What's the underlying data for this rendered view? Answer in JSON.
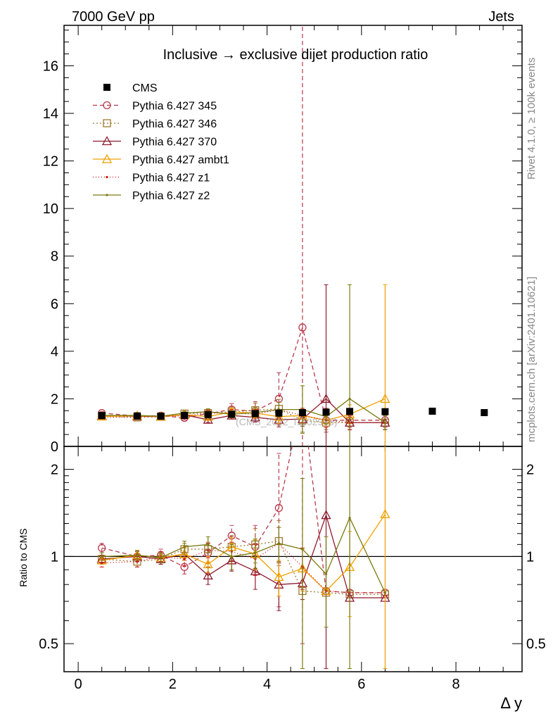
{
  "header": {
    "energy_label": "7000 GeV pp",
    "process_label": "Jets",
    "side_top": "Rivet 4.1.0, ≥ 100k events",
    "side_bottom": "mcplots.cern.ch [arXiv:2401.10621]",
    "watermark": "(CMS_2012_I1102908)"
  },
  "chart_data": {
    "type": "line",
    "title": "Inclusive → exclusive dijet production ratio",
    "xlabel": "Δ y",
    "ylabel": "",
    "ratio_ylabel": "Ratio to CMS",
    "xlim": [
      -0.3,
      9.4
    ],
    "ylim": [
      0,
      17.7
    ],
    "ratio_ylim": [
      0.4,
      2.4
    ],
    "x_ticks": [
      "0",
      "2",
      "4",
      "6",
      "8"
    ],
    "y_ticks": [
      "0",
      "2",
      "4",
      "6",
      "8",
      "10",
      "12",
      "14",
      "16"
    ],
    "ratio_ticks": [
      "0.5",
      "1",
      "2"
    ],
    "legend_position": "top-left",
    "reference": {
      "name": "CMS",
      "color": "#000000",
      "x": [
        0.5,
        1.25,
        1.75,
        2.25,
        2.75,
        3.25,
        3.75,
        4.25,
        4.75,
        5.25,
        5.75,
        6.5,
        7.5,
        8.6
      ],
      "y": [
        1.3,
        1.28,
        1.27,
        1.3,
        1.33,
        1.35,
        1.38,
        1.4,
        1.42,
        1.44,
        1.47,
        1.46,
        1.48,
        1.42
      ]
    },
    "series": [
      {
        "name": "Pythia 6.427 345",
        "color": "#b8394d",
        "dash": "6,4",
        "marker": "circle",
        "x": [
          0.5,
          1.25,
          1.75,
          2.25,
          2.75,
          3.25,
          3.75,
          4.25,
          4.75,
          5.25,
          5.75,
          6.5
        ],
        "y": [
          1.4,
          1.28,
          1.29,
          1.2,
          1.38,
          1.55,
          1.48,
          2.0,
          5.0,
          1.1,
          1.1,
          1.1
        ],
        "err": [
          0.06,
          0.06,
          0.06,
          0.08,
          0.12,
          0.25,
          0.4,
          1.1,
          15.0,
          0.5,
          0.3,
          0.3
        ],
        "ratio": [
          1.07,
          1.0,
          1.01,
          0.92,
          1.03,
          1.18,
          1.08,
          1.47,
          3.5,
          0.76,
          0.75,
          0.75
        ],
        "ratio_err": [
          0.04,
          0.04,
          0.05,
          0.05,
          0.08,
          0.1,
          0.2,
          0.8,
          3.0,
          0.0,
          0.0,
          0.0
        ]
      },
      {
        "name": "Pythia 6.427 346",
        "color": "#a07a30",
        "dash": "2,3",
        "marker": "square",
        "x": [
          0.5,
          1.25,
          1.75,
          2.25,
          2.75,
          3.25,
          3.75,
          4.25,
          4.75,
          5.25,
          5.75,
          6.5
        ],
        "y": [
          1.27,
          1.22,
          1.25,
          1.38,
          1.4,
          1.45,
          1.52,
          1.58,
          1.1,
          1.0,
          1.0,
          1.0
        ],
        "err": [
          0.05,
          0.05,
          0.06,
          0.08,
          0.12,
          0.2,
          0.3,
          0.4,
          0.5,
          0.3,
          0.3,
          0.3
        ],
        "ratio": [
          0.98,
          0.96,
          0.98,
          1.06,
          1.06,
          1.08,
          1.1,
          1.13,
          0.76,
          0.75,
          0.74,
          0.74
        ],
        "ratio_err": [
          0.03,
          0.04,
          0.04,
          0.05,
          0.06,
          0.1,
          0.15,
          0.2,
          0.0,
          0.0,
          0.0,
          0.0
        ]
      },
      {
        "name": "Pythia 6.427 370",
        "color": "#8e1b2e",
        "dash": "",
        "marker": "triangle",
        "x": [
          0.5,
          1.25,
          1.75,
          2.25,
          2.75,
          3.25,
          3.75,
          4.25,
          4.75,
          5.25,
          5.75,
          6.5
        ],
        "y": [
          1.28,
          1.27,
          1.25,
          1.33,
          1.12,
          1.3,
          1.22,
          1.12,
          1.15,
          2.0,
          1.0,
          1.0
        ],
        "err": [
          0.05,
          0.05,
          0.06,
          0.08,
          0.12,
          0.15,
          0.2,
          0.3,
          0.3,
          4.8,
          0.3,
          0.3
        ],
        "ratio": [
          0.98,
          1.0,
          0.98,
          1.02,
          0.86,
          0.97,
          0.89,
          0.8,
          0.81,
          1.39,
          0.72,
          0.72
        ],
        "ratio_err": [
          0.03,
          0.04,
          0.04,
          0.05,
          0.06,
          0.08,
          0.12,
          0.15,
          0.1,
          1.5,
          0.0,
          0.0
        ]
      },
      {
        "name": "Pythia 6.427 ambt1",
        "color": "#f0a000",
        "dash": "",
        "marker": "triangle",
        "x": [
          0.5,
          1.25,
          1.75,
          2.25,
          2.75,
          3.25,
          3.75,
          4.25,
          4.75,
          5.25,
          5.75,
          6.5
        ],
        "y": [
          1.26,
          1.29,
          1.25,
          1.33,
          1.25,
          1.45,
          1.4,
          1.25,
          1.3,
          1.1,
          1.35,
          2.0
        ],
        "err": [
          0.05,
          0.05,
          0.06,
          0.08,
          0.1,
          0.15,
          0.2,
          0.3,
          0.3,
          0.3,
          0.4,
          4.8
        ],
        "ratio": [
          0.97,
          1.01,
          0.99,
          1.02,
          0.94,
          1.08,
          1.02,
          0.85,
          0.91,
          0.76,
          0.92,
          1.4
        ],
        "ratio_err": [
          0.03,
          0.04,
          0.04,
          0.05,
          0.06,
          0.08,
          0.12,
          0.12,
          0.15,
          0.0,
          0.3,
          1.5
        ]
      },
      {
        "name": "Pythia 6.427 z1",
        "color": "#d01010",
        "dash": "1,3",
        "marker": "dot",
        "x": [
          0.5,
          1.25,
          1.75,
          2.25,
          2.75,
          3.25,
          3.75,
          4.25,
          4.75,
          5.25,
          5.75,
          6.5
        ],
        "y": [
          1.22,
          1.23,
          1.27,
          1.28,
          1.4,
          1.4,
          1.35,
          1.55,
          1.3,
          1.1,
          1.0,
          1.0
        ],
        "err": [
          0.05,
          0.05,
          0.06,
          0.08,
          0.12,
          0.15,
          0.2,
          0.3,
          0.3,
          0.3,
          0.3,
          0.3
        ],
        "ratio": [
          0.95,
          0.96,
          1.0,
          0.98,
          1.05,
          1.04,
          0.98,
          1.11,
          0.92,
          0.76,
          0.75,
          0.75
        ],
        "ratio_err": [
          0.03,
          0.04,
          0.04,
          0.05,
          0.06,
          0.08,
          0.12,
          0.15,
          0.15,
          0.0,
          0.0,
          0.0
        ]
      },
      {
        "name": "Pythia 6.427 z2",
        "color": "#7a7a10",
        "dash": "",
        "marker": "dot",
        "x": [
          0.5,
          1.25,
          1.75,
          2.25,
          2.75,
          3.25,
          3.75,
          4.25,
          4.75,
          5.25,
          5.75,
          6.5
        ],
        "y": [
          1.3,
          1.3,
          1.27,
          1.4,
          1.46,
          1.35,
          1.42,
          1.55,
          1.55,
          1.25,
          2.0,
          1.0
        ],
        "err": [
          0.05,
          0.05,
          0.06,
          0.08,
          0.12,
          0.15,
          0.2,
          0.3,
          1.0,
          0.3,
          4.8,
          0.3
        ],
        "ratio": [
          1.0,
          1.01,
          0.99,
          1.08,
          1.1,
          1.0,
          1.03,
          1.11,
          1.06,
          0.87,
          1.36,
          0.75
        ],
        "ratio_err": [
          0.03,
          0.04,
          0.04,
          0.05,
          0.07,
          0.1,
          0.12,
          0.15,
          0.8,
          0.3,
          1.5,
          0.0
        ]
      }
    ]
  }
}
